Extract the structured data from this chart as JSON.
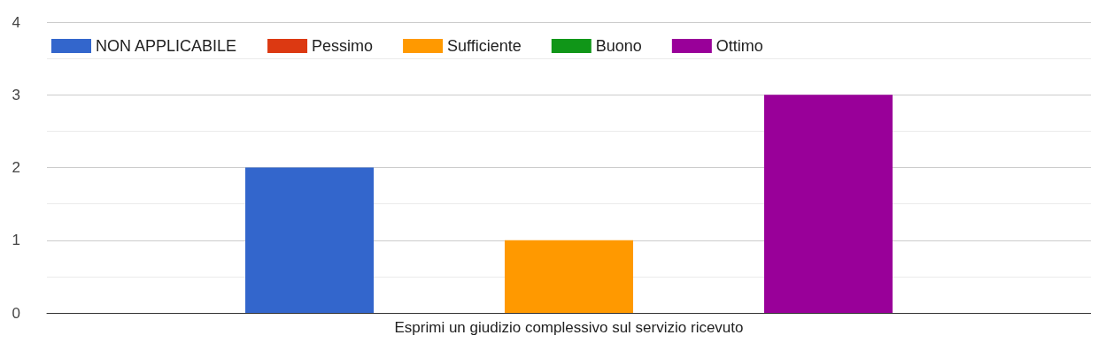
{
  "chart_data": {
    "type": "bar",
    "categories": [
      "Esprimi un giudizio complessivo sul servizio ricevuto"
    ],
    "series": [
      {
        "name": "NON APPLICABILE",
        "color": "#3366cc",
        "values": [
          2
        ]
      },
      {
        "name": "Pessimo",
        "color": "#dc3912",
        "values": [
          0
        ]
      },
      {
        "name": "Sufficiente",
        "color": "#ff9900",
        "values": [
          1
        ]
      },
      {
        "name": "Buono",
        "color": "#109618",
        "values": [
          0
        ]
      },
      {
        "name": "Ottimo",
        "color": "#990099",
        "values": [
          3
        ]
      }
    ],
    "ylim": [
      0,
      4
    ],
    "yticks": [
      0,
      1,
      2,
      3,
      4
    ],
    "grid": true,
    "legend": "top left"
  }
}
